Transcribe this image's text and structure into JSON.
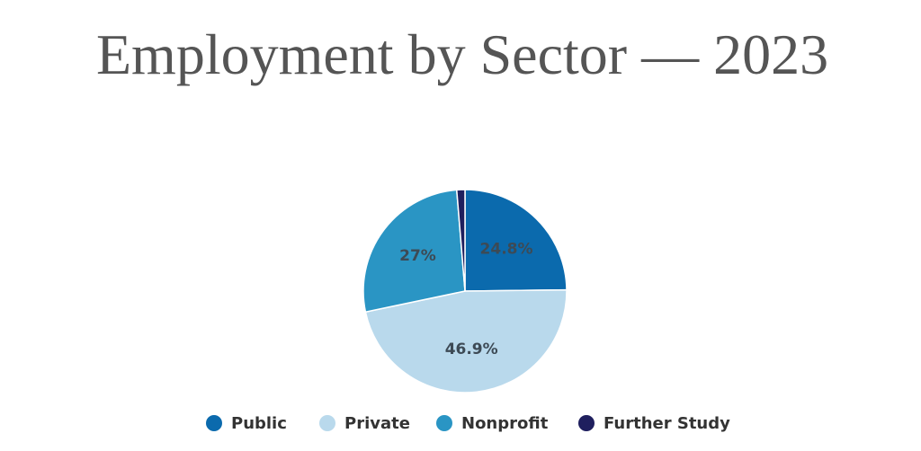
{
  "chart_data": {
    "type": "pie",
    "title": "Employment by Sector — 2023",
    "categories": [
      "Public",
      "Private",
      "Nonprofit",
      "Further Study"
    ],
    "values": [
      24.8,
      46.9,
      27,
      1.3
    ],
    "value_labels": [
      "24.8%",
      "46.9%",
      "27%",
      null
    ],
    "colors": [
      "#0b6aad",
      "#b9d9ec",
      "#2a95c4",
      "#1f1f5e"
    ],
    "legend": "bottom"
  }
}
